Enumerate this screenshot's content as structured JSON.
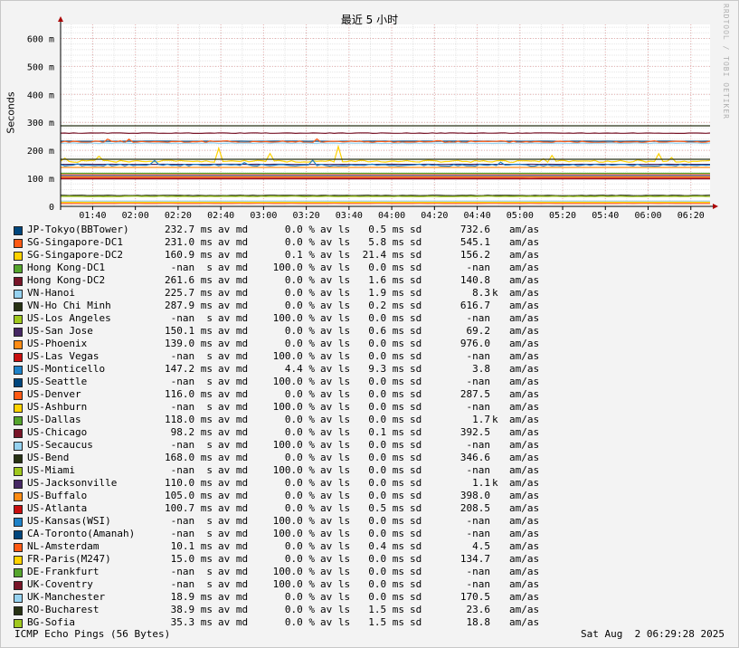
{
  "watermark": "RRDTOOL / TOBI OETIKER",
  "footer": {
    "description": "ICMP Echo Pings (56 Bytes)",
    "timestamp": "Sat Aug  2 06:29:28 2025"
  },
  "chart_data": {
    "type": "line",
    "title": "最近 5 小时",
    "ylabel": "Seconds",
    "ylim": [
      0,
      650
    ],
    "grid": true,
    "y_ticks": [
      {
        "v": 0,
        "label": "0"
      },
      {
        "v": 100,
        "label": "100 m"
      },
      {
        "v": 200,
        "label": "200 m"
      },
      {
        "v": 300,
        "label": "300 m"
      },
      {
        "v": 400,
        "label": "400 m"
      },
      {
        "v": 500,
        "label": "500 m"
      },
      {
        "v": 600,
        "label": "600 m"
      }
    ],
    "x_tick_labels": [
      "01:40",
      "02:00",
      "02:20",
      "02:40",
      "03:00",
      "03:20",
      "03:40",
      "04:00",
      "04:20",
      "04:40",
      "05:00",
      "05:20",
      "05:40",
      "06:00",
      "06:20"
    ],
    "x_range_minutes": [
      85,
      389
    ],
    "series": [
      {
        "name": "JP-Tokyo(BBTower)",
        "color": "#00467d",
        "median": "232.7 ms",
        "loss": "0.0 %",
        "sd": "0.5 ms",
        "am": "732.6",
        "am_unit": ""
      },
      {
        "name": "SG-Singapore-DC1",
        "color": "#ff5a14",
        "median": "231.0 ms",
        "loss": "0.0 %",
        "sd": "5.8 ms",
        "am": "545.1",
        "am_unit": ""
      },
      {
        "name": "SG-Singapore-DC2",
        "color": "#ffd200",
        "median": "160.9 ms",
        "loss": "0.1 %",
        "sd": "21.4 ms",
        "am": "156.2",
        "am_unit": ""
      },
      {
        "name": "Hong Kong-DC1",
        "color": "#55a52d",
        "median": "-nan  s",
        "loss": "100.0 %",
        "sd": "0.0 ms",
        "am": "-nan",
        "am_unit": ""
      },
      {
        "name": "Hong Kong-DC2",
        "color": "#781428",
        "median": "261.6 ms",
        "loss": "0.0 %",
        "sd": "1.6 ms",
        "am": "140.8",
        "am_unit": ""
      },
      {
        "name": "VN-Hanoi",
        "color": "#96d2f0",
        "median": "225.7 ms",
        "loss": "0.0 %",
        "sd": "1.9 ms",
        "am": "8.3",
        "am_unit": "k"
      },
      {
        "name": "VN-Ho Chi Minh",
        "color": "#283214",
        "median": "287.9 ms",
        "loss": "0.0 %",
        "sd": "0.2 ms",
        "am": "616.7",
        "am_unit": ""
      },
      {
        "name": "US-Los Angeles",
        "color": "#a0c81e",
        "median": "-nan  s",
        "loss": "100.0 %",
        "sd": "0.0 ms",
        "am": "-nan",
        "am_unit": ""
      },
      {
        "name": "US-San Jose",
        "color": "#462864",
        "median": "150.1 ms",
        "loss": "0.0 %",
        "sd": "0.6 ms",
        "am": "69.2",
        "am_unit": ""
      },
      {
        "name": "US-Phoenix",
        "color": "#ff8c14",
        "median": "139.0 ms",
        "loss": "0.0 %",
        "sd": "0.0 ms",
        "am": "976.0",
        "am_unit": ""
      },
      {
        "name": "US-Las Vegas",
        "color": "#c80f0f",
        "median": "-nan  s",
        "loss": "100.0 %",
        "sd": "0.0 ms",
        "am": "-nan",
        "am_unit": ""
      },
      {
        "name": "US-Monticello",
        "color": "#1e82c8",
        "median": "147.2 ms",
        "loss": "4.4 %",
        "sd": "9.3 ms",
        "am": "3.8",
        "am_unit": ""
      },
      {
        "name": "US-Seattle",
        "color": "#00467d",
        "median": "-nan  s",
        "loss": "100.0 %",
        "sd": "0.0 ms",
        "am": "-nan",
        "am_unit": ""
      },
      {
        "name": "US-Denver",
        "color": "#ff5a14",
        "median": "116.0 ms",
        "loss": "0.0 %",
        "sd": "0.0 ms",
        "am": "287.5",
        "am_unit": ""
      },
      {
        "name": "US-Ashburn",
        "color": "#ffd200",
        "median": "-nan  s",
        "loss": "100.0 %",
        "sd": "0.0 ms",
        "am": "-nan",
        "am_unit": ""
      },
      {
        "name": "US-Dallas",
        "color": "#55a52d",
        "median": "118.0 ms",
        "loss": "0.0 %",
        "sd": "0.0 ms",
        "am": "1.7",
        "am_unit": "k"
      },
      {
        "name": "US-Chicago",
        "color": "#781428",
        "median": "98.2 ms",
        "loss": "0.0 %",
        "sd": "0.1 ms",
        "am": "392.5",
        "am_unit": ""
      },
      {
        "name": "US-Secaucus",
        "color": "#96d2f0",
        "median": "-nan  s",
        "loss": "100.0 %",
        "sd": "0.0 ms",
        "am": "-nan",
        "am_unit": ""
      },
      {
        "name": "US-Bend",
        "color": "#283214",
        "median": "168.0 ms",
        "loss": "0.0 %",
        "sd": "0.0 ms",
        "am": "346.6",
        "am_unit": ""
      },
      {
        "name": "US-Miami",
        "color": "#a0c81e",
        "median": "-nan  s",
        "loss": "100.0 %",
        "sd": "0.0 ms",
        "am": "-nan",
        "am_unit": ""
      },
      {
        "name": "US-Jacksonville",
        "color": "#462864",
        "median": "110.0 ms",
        "loss": "0.0 %",
        "sd": "0.0 ms",
        "am": "1.1",
        "am_unit": "k"
      },
      {
        "name": "US-Buffalo",
        "color": "#ff8c14",
        "median": "105.0 ms",
        "loss": "0.0 %",
        "sd": "0.0 ms",
        "am": "398.0",
        "am_unit": ""
      },
      {
        "name": "US-Atlanta",
        "color": "#c80f0f",
        "median": "100.7 ms",
        "loss": "0.0 %",
        "sd": "0.5 ms",
        "am": "208.5",
        "am_unit": ""
      },
      {
        "name": "US-Kansas(WSI)",
        "color": "#1e82c8",
        "median": "-nan  s",
        "loss": "100.0 %",
        "sd": "0.0 ms",
        "am": "-nan",
        "am_unit": ""
      },
      {
        "name": "CA-Toronto(Amanah)",
        "color": "#00467d",
        "median": "-nan  s",
        "loss": "100.0 %",
        "sd": "0.0 ms",
        "am": "-nan",
        "am_unit": ""
      },
      {
        "name": "NL-Amsterdam",
        "color": "#ff5a14",
        "median": "10.1 ms",
        "loss": "0.0 %",
        "sd": "0.4 ms",
        "am": "4.5",
        "am_unit": ""
      },
      {
        "name": "FR-Paris(M247)",
        "color": "#ffd200",
        "median": "15.0 ms",
        "loss": "0.0 %",
        "sd": "0.0 ms",
        "am": "134.7",
        "am_unit": ""
      },
      {
        "name": "DE-Frankfurt",
        "color": "#55a52d",
        "median": "-nan  s",
        "loss": "100.0 %",
        "sd": "0.0 ms",
        "am": "-nan",
        "am_unit": ""
      },
      {
        "name": "UK-Coventry",
        "color": "#781428",
        "median": "-nan  s",
        "loss": "100.0 %",
        "sd": "0.0 ms",
        "am": "-nan",
        "am_unit": ""
      },
      {
        "name": "UK-Manchester",
        "color": "#96d2f0",
        "median": "18.9 ms",
        "loss": "0.0 %",
        "sd": "0.0 ms",
        "am": "170.5",
        "am_unit": ""
      },
      {
        "name": "RO-Bucharest",
        "color": "#283214",
        "median": "38.9 ms",
        "loss": "0.0 %",
        "sd": "1.5 ms",
        "am": "23.6",
        "am_unit": ""
      },
      {
        "name": "BG-Sofia",
        "color": "#a0c81e",
        "median": "35.3 ms",
        "loss": "0.0 %",
        "sd": "1.5 ms",
        "am": "18.8",
        "am_unit": ""
      }
    ],
    "legend_units": {
      "avg_median": "av md",
      "avg_loss": "av ls",
      "sd": "sd",
      "amas": "am/as"
    }
  }
}
